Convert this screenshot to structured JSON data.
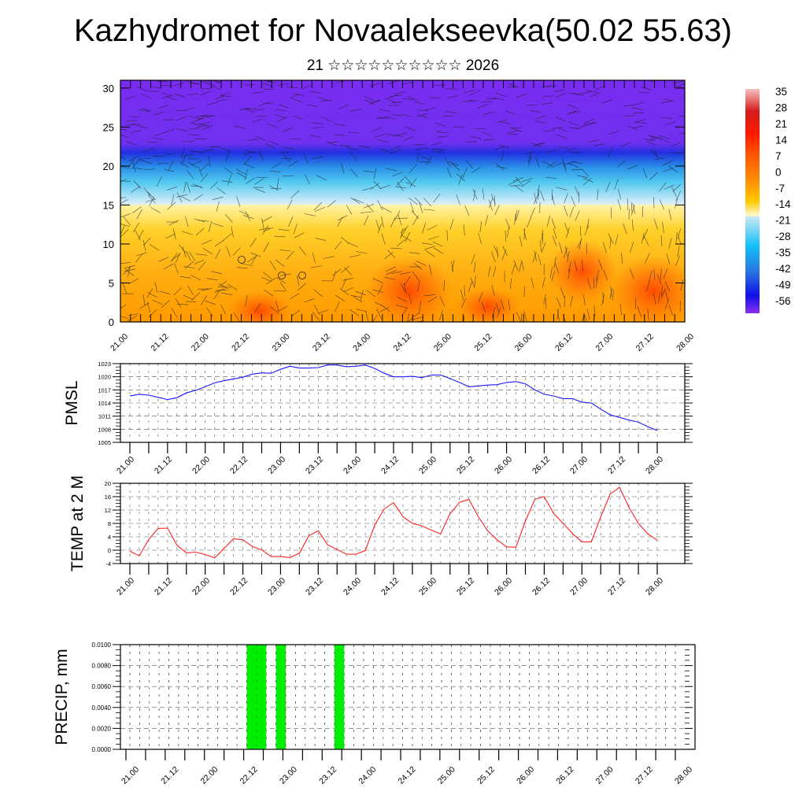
{
  "header": {
    "title": "Kazhydromet for Novaalekseevka(50.02 55.63)",
    "subtitle": "21 ☆☆☆☆☆☆☆☆☆☆ 2026"
  },
  "x_ticks": [
    "21.00",
    "21.12",
    "22.00",
    "22.12",
    "23.00",
    "23.12",
    "24.00",
    "24.12",
    "25.00",
    "25.12",
    "26.00",
    "26.12",
    "27.00",
    "27.12",
    "28.00"
  ],
  "chart_data": [
    {
      "type": "heatmap",
      "name": "cross-section",
      "title": "",
      "ylim": [
        0,
        31
      ],
      "y_ticks": [
        "0",
        "5",
        "10",
        "15",
        "20",
        "25",
        "30"
      ],
      "colorbar": {
        "labels": [
          "35",
          "28",
          "21",
          "14",
          "7",
          "0",
          "-7",
          "-14",
          "-21",
          "-28",
          "-35",
          "-42",
          "-49",
          "-56"
        ],
        "colors": [
          "#f5b5b5",
          "#d42020",
          "#ff2a00",
          "#ff6a00",
          "#ff9000",
          "#ffbe00",
          "#ffe030",
          "#fffbd0",
          "#c8e8f5",
          "#5cc8f0",
          "#10b8f8",
          "#2e80e8",
          "#2040e0",
          "#8030f0"
        ]
      }
    },
    {
      "type": "line",
      "name": "pmsl",
      "ylabel": "PMSL",
      "ylim": [
        1005,
        1023
      ],
      "y_ticks": [
        "1005",
        "1008",
        "1011",
        "1014",
        "1017",
        "1020",
        "1023"
      ],
      "color": "#1a1aff",
      "step_hours": 3,
      "values": [
        1015.6,
        1016.0,
        1015.8,
        1015.3,
        1014.8,
        1015.2,
        1016.3,
        1016.9,
        1017.7,
        1018.6,
        1019.1,
        1019.5,
        1019.9,
        1020.6,
        1020.9,
        1020.8,
        1021.7,
        1022.4,
        1022.0,
        1022.0,
        1022.1,
        1022.7,
        1022.7,
        1022.3,
        1022.4,
        1022.7,
        1021.9,
        1020.8,
        1020.0,
        1020.0,
        1020.1,
        1019.8,
        1020.4,
        1020.4,
        1019.6,
        1018.7,
        1017.7,
        1017.9,
        1018.1,
        1018.2,
        1018.7,
        1018.9,
        1018.4,
        1017.0,
        1016.0,
        1015.6,
        1015.0,
        1015.0,
        1014.2,
        1014.0,
        1012.6,
        1011.3,
        1010.7,
        1010.1,
        1009.6,
        1008.6,
        1007.7
      ]
    },
    {
      "type": "line",
      "name": "temp",
      "ylabel": "TEMP at 2 M",
      "ylim": [
        -4,
        20
      ],
      "y_ticks": [
        "-4",
        "0",
        "4",
        "8",
        "12",
        "16",
        "20"
      ],
      "color": "#ff2020",
      "step_hours": 3,
      "values": [
        -0.3,
        -1.7,
        3.2,
        6.5,
        6.6,
        1.5,
        -0.8,
        -0.6,
        -1.3,
        -2.3,
        0.5,
        3.4,
        3.1,
        1.1,
        0.1,
        -1.9,
        -1.9,
        -2.2,
        -0.9,
        4.3,
        5.8,
        1.6,
        0.2,
        -1.2,
        -1.2,
        -0.1,
        7.5,
        12.3,
        14.2,
        10.0,
        8.0,
        7.3,
        6.0,
        4.9,
        10.9,
        14.3,
        15.2,
        10.0,
        5.8,
        3.1,
        1.0,
        0.9,
        8.7,
        15.2,
        16.0,
        11.0,
        8.0,
        5.0,
        2.5,
        2.5,
        10.0,
        16.8,
        18.8,
        12.8,
        8.0,
        4.9,
        3.0
      ]
    },
    {
      "type": "bar",
      "name": "precip",
      "ylabel": "PRECIP, mm",
      "ylim": [
        0,
        0.01
      ],
      "y_ticks": [
        "0.0000",
        "0.0020",
        "0.0040",
        "0.0060",
        "0.0080",
        "0.0100"
      ],
      "color": "#00ee00",
      "bars": [
        {
          "start": "22.12",
          "end": "22.18",
          "value": 0.01
        },
        {
          "start": "22.21",
          "end": "22.24",
          "value": 0.01
        },
        {
          "start": "23.15",
          "end": "23.18",
          "value": 0.01
        }
      ]
    }
  ]
}
